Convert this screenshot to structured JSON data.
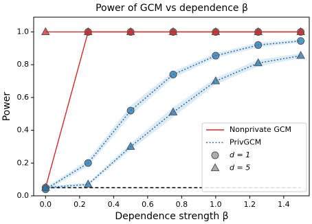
{
  "chart_data": {
    "type": "line",
    "title": "Power of GCM vs dependence β",
    "x_label": "Dependence strength β",
    "y_label": "Power",
    "x": [
      0,
      0.25,
      0.5,
      0.75,
      1.0,
      1.25,
      1.5
    ],
    "xlim": [
      -0.07,
      1.55
    ],
    "ylim": [
      0,
      1.09
    ],
    "xticks": [
      {
        "value": 0,
        "label": "0.0"
      },
      {
        "value": 0.2,
        "label": "0.2"
      },
      {
        "value": 0.4,
        "label": "0.4"
      },
      {
        "value": 0.6,
        "label": "0.6"
      },
      {
        "value": 0.8,
        "label": "0.8"
      },
      {
        "value": 1.0,
        "label": "1.0"
      },
      {
        "value": 1.2,
        "label": "1.2"
      },
      {
        "value": 1.4,
        "label": "1.4"
      }
    ],
    "yticks": [
      {
        "value": 0,
        "label": "0.0"
      },
      {
        "value": 0.2,
        "label": "0.2"
      },
      {
        "value": 0.4,
        "label": "0.4"
      },
      {
        "value": 0.6,
        "label": "0.6"
      },
      {
        "value": 0.8,
        "label": "0.8"
      },
      {
        "value": 1.0,
        "label": "1.0"
      }
    ],
    "groups": [
      {
        "name": "Nonprivate GCM",
        "color": "#d62728",
        "linestyle": "solid",
        "series": [
          {
            "marker": "circle",
            "values": [
              0.05,
              1,
              1,
              1,
              1,
              1,
              1
            ]
          },
          {
            "marker": "triangle",
            "values": [
              1,
              1,
              1,
              1,
              1,
              1,
              1
            ]
          }
        ]
      },
      {
        "name": "PrivGCM",
        "color": "#1f77b4",
        "linestyle": "dotted",
        "series": [
          {
            "marker": "circle",
            "values": [
              0.04,
              0.2,
              0.52,
              0.74,
              0.855,
              0.92,
              0.945
            ],
            "lower": [
              0.03,
              0.18,
              0.49,
              0.72,
              0.84,
              0.905,
              0.935
            ],
            "upper": [
              0.05,
              0.22,
              0.55,
              0.76,
              0.87,
              0.935,
              0.955
            ]
          },
          {
            "marker": "triangle",
            "values": [
              0.05,
              0.07,
              0.3,
              0.51,
              0.7,
              0.81,
              0.855
            ],
            "lower": [
              0.04,
              0.06,
              0.28,
              0.48,
              0.68,
              0.79,
              0.84
            ],
            "upper": [
              0.06,
              0.08,
              0.32,
              0.54,
              0.72,
              0.83,
              0.87
            ]
          }
        ]
      }
    ],
    "markers": [
      {
        "label": "d = 1",
        "marker": "circle"
      },
      {
        "label": "d = 5",
        "marker": "triangle"
      }
    ],
    "alpha_line": {
      "y": 0.05,
      "x": [
        0,
        1.5
      ],
      "color": "#000000"
    },
    "legend": "lower right"
  }
}
